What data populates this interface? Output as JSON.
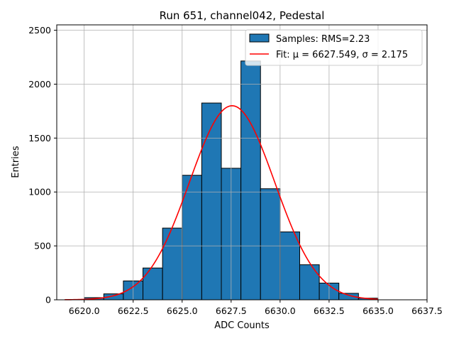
{
  "chart_data": {
    "type": "bar",
    "title": "Run 651, channel042, Pedestal",
    "xlabel": "ADC Counts",
    "ylabel": "Entries",
    "xlim": [
      6618.6,
      6637.5
    ],
    "ylim": [
      0,
      2550
    ],
    "grid": true,
    "legend_position": "top-right",
    "xticks": [
      6620.0,
      6622.5,
      6625.0,
      6627.5,
      6630.0,
      6632.5,
      6635.0,
      6637.5
    ],
    "xtick_labels": [
      "6620.0",
      "6622.5",
      "6625.0",
      "6627.5",
      "6630.0",
      "6632.5",
      "6635.0",
      "6637.5"
    ],
    "yticks": [
      0,
      500,
      1000,
      1500,
      2000,
      2500
    ],
    "ytick_labels": [
      "0",
      "500",
      "1000",
      "1500",
      "2000",
      "2500"
    ],
    "histogram": {
      "name": "Samples: RMS=2.23",
      "color": "#1f77b4",
      "edge_color": "#000000",
      "bin_edges": [
        6620,
        6621,
        6622,
        6623,
        6624,
        6625,
        6626,
        6627,
        6628,
        6629,
        6630,
        6631,
        6632,
        6633,
        6634,
        6635
      ],
      "counts": [
        20,
        55,
        175,
        295,
        665,
        1155,
        1825,
        1220,
        2215,
        1030,
        630,
        325,
        155,
        60,
        15
      ]
    },
    "fit": {
      "name": "Fit: μ = 6627.549, σ = 2.175",
      "color": "#ff0000",
      "mu": 6627.549,
      "sigma": 2.175,
      "amplitude": 1800,
      "x_range": [
        6619,
        6635
      ]
    }
  }
}
